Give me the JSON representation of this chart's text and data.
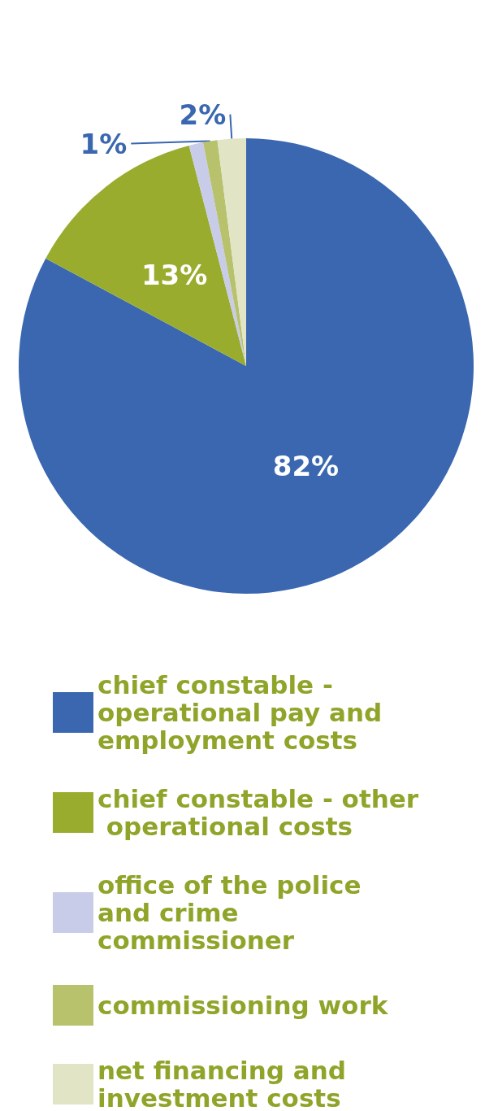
{
  "chart_data": {
    "type": "pie",
    "categories": [
      "chief constable - operational pay and employment costs",
      "chief constable - other operational costs",
      "office of the police and crime commissioner",
      "commissioning work",
      "net financing and investment costs"
    ],
    "values": [
      82,
      13,
      1,
      1,
      2
    ],
    "colors": [
      "#3a67b0",
      "#9aac2e",
      "#c8cce8",
      "#b8c16c",
      "#e1e5c6"
    ],
    "value_labels": [
      "82%",
      "13%",
      null,
      "1%",
      "2%"
    ],
    "legend": "bottom"
  }
}
